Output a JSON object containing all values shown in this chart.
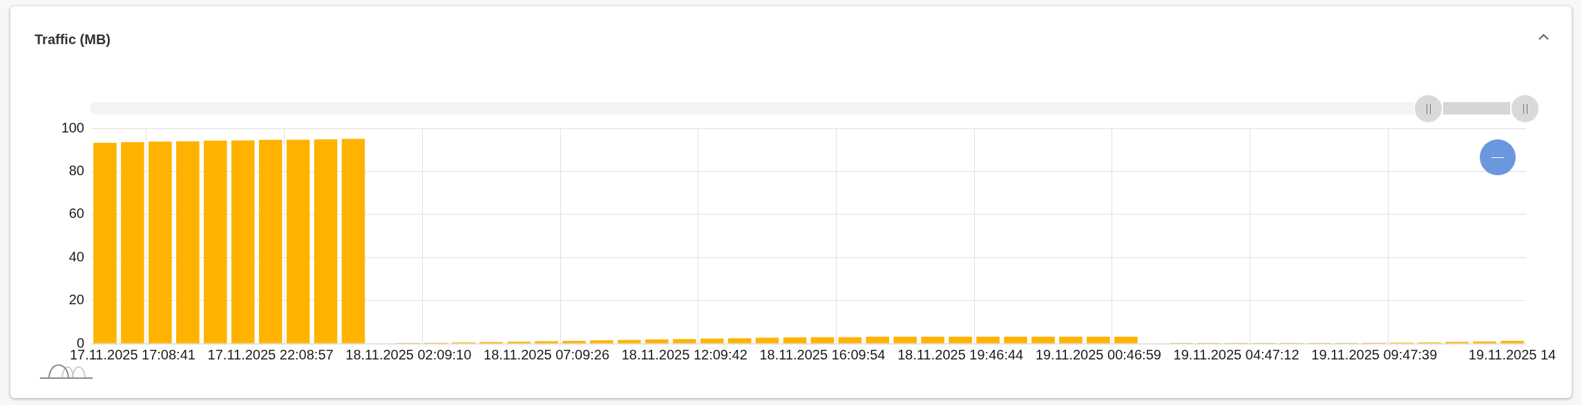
{
  "chart_data": {
    "type": "bar",
    "title": "Traffic (MB)",
    "categories": [
      null,
      "17.11.2025 17:08:41",
      null,
      null,
      null,
      null,
      "17.11.2025 22:08:57",
      null,
      null,
      null,
      null,
      "18.11.2025 02:09:10",
      null,
      null,
      null,
      null,
      "18.11.2025 07:09:26",
      null,
      null,
      null,
      null,
      "18.11.2025 12:09:42",
      null,
      null,
      null,
      null,
      "18.11.2025 16:09:54",
      null,
      null,
      null,
      null,
      "18.11.2025 19:46:44",
      null,
      null,
      null,
      null,
      "19.11.2025 00:46:59",
      null,
      null,
      null,
      null,
      "19.11.2025 04:47:12",
      null,
      null,
      null,
      null,
      "19.11.2025 09:47:39",
      null,
      null,
      null,
      null,
      "19.11.2025 14"
    ],
    "values": [
      93.3,
      93.6,
      93.8,
      94.0,
      94.3,
      94.4,
      94.6,
      94.7,
      94.9,
      95.1,
      null,
      0.3,
      0.4,
      0.6,
      0.7,
      0.9,
      1.1,
      1.3,
      1.5,
      1.7,
      1.9,
      2.1,
      2.3,
      2.5,
      2.7,
      2.9,
      3.0,
      3.0,
      3.2,
      3.2,
      3.2,
      3.2,
      3.2,
      3.2,
      3.2,
      3.2,
      3.2,
      3.2,
      null,
      0.3,
      0.3,
      0.3,
      0.3,
      0.3,
      0.3,
      0.3,
      0.4,
      0.5,
      0.6,
      0.8,
      1.0,
      1.3
    ],
    "color": "#ffb300",
    "ylim": [
      0,
      100
    ],
    "yticks": [
      0,
      20,
      40,
      60,
      80,
      100
    ],
    "grid": true
  }
}
